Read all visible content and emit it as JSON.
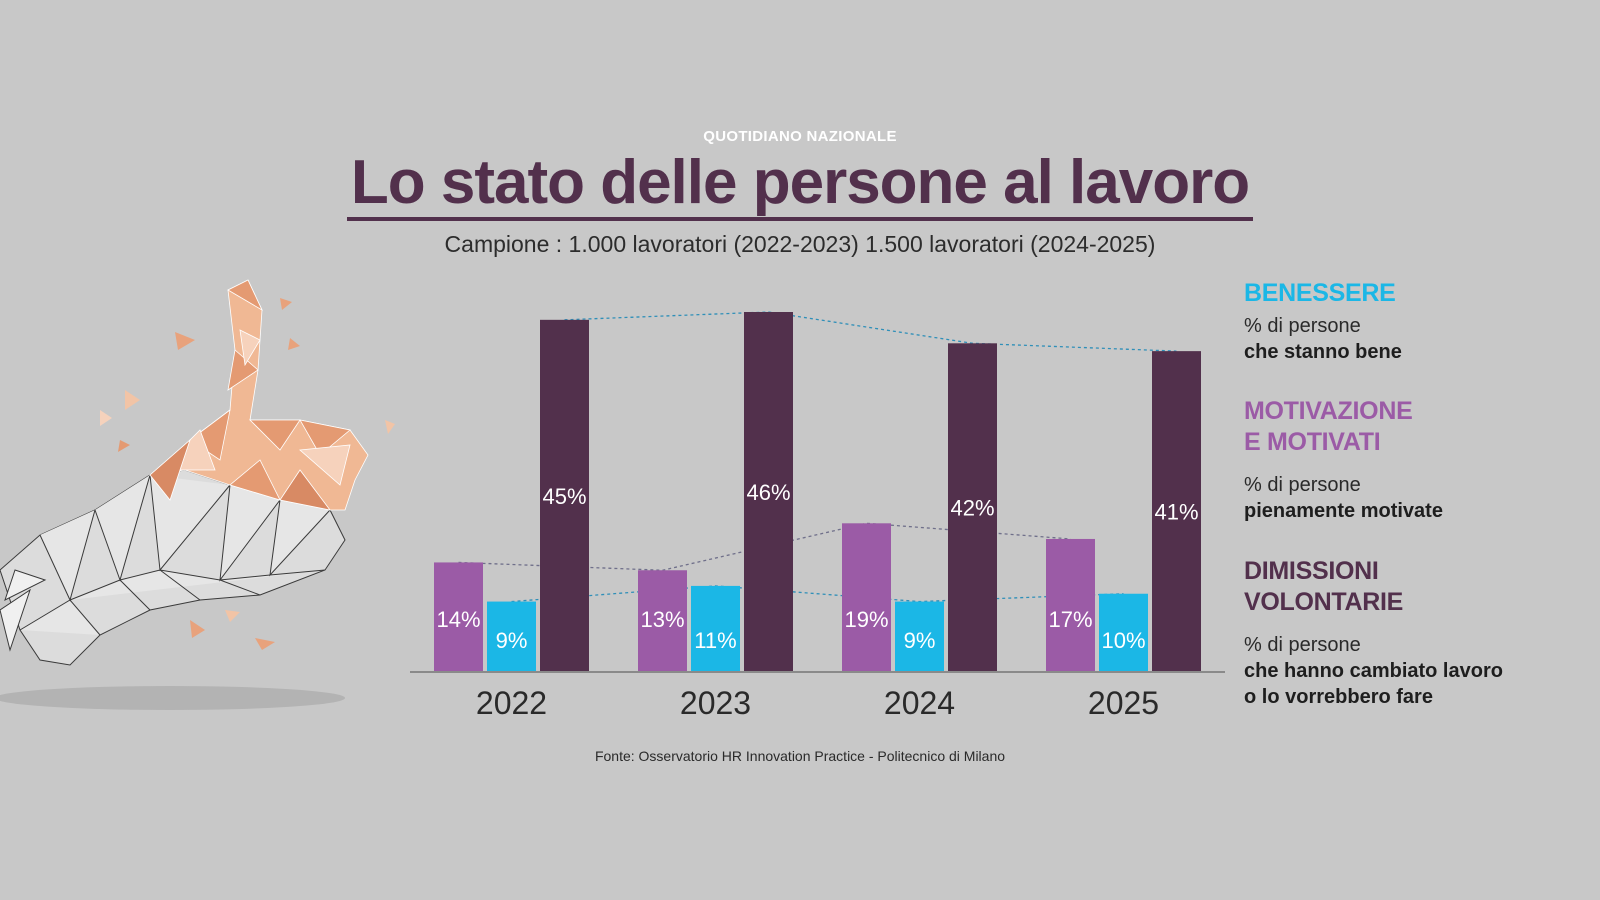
{
  "header": {
    "publisher": "QUOTIDIANO NAZIONALE",
    "title": "Lo stato delle persone al lavoro",
    "subtitle": "Campione : 1.000  lavoratori (2022-2023) 1.500 lavoratori (2024-2025)"
  },
  "legend": {
    "benessere": {
      "heading": "BENESSERE",
      "line1": "% di persone",
      "line2": "che stanno bene",
      "color": "#1bb7e6"
    },
    "motivazione": {
      "heading1": "MOTIVAZIONE",
      "heading2": "E MOTIVATI",
      "line1": "% di persone",
      "line2": "pienamente motivate",
      "color": "#9b5ba6"
    },
    "dimissioni": {
      "heading1": "DIMISSIONI",
      "heading2": "VOLONTARIE",
      "line1": "% di persone",
      "line2": "che hanno cambiato lavoro",
      "line3": "o lo vorrebbero fare",
      "color": "#52304c"
    }
  },
  "source": "Fonte: Osservatorio HR Innovation Practice - Politecnico di Milano",
  "chart_data": {
    "type": "bar",
    "categories": [
      "2022",
      "2023",
      "2024",
      "2025"
    ],
    "series": [
      {
        "name": "MOTIVAZIONE E MOTIVATI",
        "values": [
          14,
          13,
          19,
          17
        ],
        "labels": [
          "14%",
          "13%",
          "19%",
          "17%"
        ],
        "color": "#9b5ba6"
      },
      {
        "name": "BENESSERE",
        "values": [
          9,
          11,
          9,
          10
        ],
        "labels": [
          "9%",
          "11%",
          "9%",
          "10%"
        ],
        "color": "#1bb7e6"
      },
      {
        "name": "DIMISSIONI VOLONTARIE",
        "values": [
          45,
          46,
          42,
          41
        ],
        "labels": [
          "45%",
          "46%",
          "42%",
          "41%"
        ],
        "color": "#52304c"
      }
    ],
    "ylim": [
      0,
      46
    ],
    "trend_lines": true,
    "title": "Lo stato delle persone al lavoro",
    "xlabel": "",
    "ylabel": ""
  }
}
